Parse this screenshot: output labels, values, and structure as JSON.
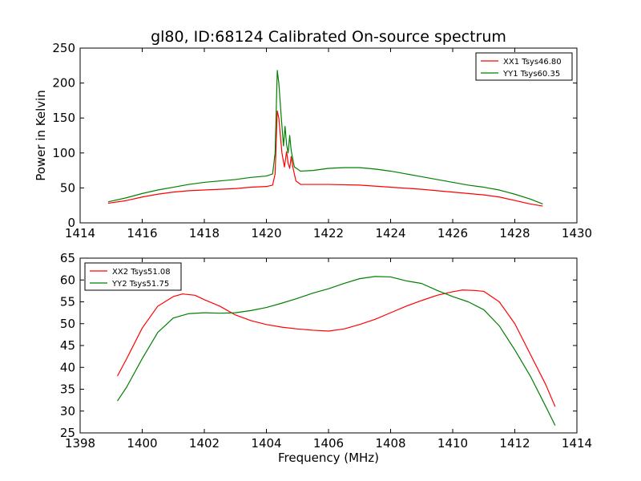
{
  "figure": {
    "title": "gl80, ID:68124 Calibrated On-source spectrum"
  },
  "colors": {
    "red": "#ff0000",
    "green": "#008000",
    "axis": "#000000",
    "background": "#ffffff"
  },
  "chart_data": [
    {
      "type": "line",
      "title": "gl80, ID:68124 Calibrated On-source spectrum",
      "xlabel": "",
      "ylabel": "Power in Kelvin",
      "xlim": [
        1414,
        1430
      ],
      "ylim": [
        0,
        250
      ],
      "xticks": [
        1414,
        1416,
        1418,
        1420,
        1422,
        1424,
        1426,
        1428,
        1430
      ],
      "yticks": [
        0,
        50,
        100,
        150,
        200,
        250
      ],
      "grid": false,
      "legend": "top-right",
      "series": [
        {
          "name": "XX1 Tsys46.80",
          "color": "#ff0000",
          "points": [
            [
              1414.9,
              28
            ],
            [
              1415.5,
              32
            ],
            [
              1416,
              37
            ],
            [
              1416.5,
              41
            ],
            [
              1417,
              44
            ],
            [
              1417.5,
              46
            ],
            [
              1418,
              47
            ],
            [
              1418.5,
              48
            ],
            [
              1419,
              49
            ],
            [
              1419.5,
              51
            ],
            [
              1420,
              52
            ],
            [
              1420.2,
              54
            ],
            [
              1420.28,
              70
            ],
            [
              1420.35,
              160
            ],
            [
              1420.4,
              150
            ],
            [
              1420.5,
              100
            ],
            [
              1420.58,
              80
            ],
            [
              1420.65,
              102
            ],
            [
              1420.7,
              85
            ],
            [
              1420.75,
              78
            ],
            [
              1420.8,
              95
            ],
            [
              1420.85,
              80
            ],
            [
              1420.95,
              60
            ],
            [
              1421.1,
              55
            ],
            [
              1422,
              55
            ],
            [
              1423,
              54
            ],
            [
              1424,
              51
            ],
            [
              1425,
              48
            ],
            [
              1426,
              44
            ],
            [
              1427,
              40
            ],
            [
              1427.5,
              37
            ],
            [
              1428,
              32
            ],
            [
              1428.5,
              27
            ],
            [
              1428.9,
              24
            ]
          ]
        },
        {
          "name": "YY1 Tsys60.35",
          "color": "#008000",
          "points": [
            [
              1414.9,
              30
            ],
            [
              1415.5,
              36
            ],
            [
              1416,
              42
            ],
            [
              1416.5,
              47
            ],
            [
              1417,
              51
            ],
            [
              1417.5,
              55
            ],
            [
              1418,
              58
            ],
            [
              1418.5,
              60
            ],
            [
              1419,
              62
            ],
            [
              1419.5,
              65
            ],
            [
              1420,
              67
            ],
            [
              1420.2,
              70
            ],
            [
              1420.28,
              100
            ],
            [
              1420.35,
              218
            ],
            [
              1420.4,
              200
            ],
            [
              1420.48,
              150
            ],
            [
              1420.55,
              110
            ],
            [
              1420.6,
              138
            ],
            [
              1420.65,
              112
            ],
            [
              1420.7,
              100
            ],
            [
              1420.75,
              125
            ],
            [
              1420.8,
              103
            ],
            [
              1420.9,
              80
            ],
            [
              1421.1,
              74
            ],
            [
              1421.5,
              75
            ],
            [
              1422,
              78
            ],
            [
              1422.5,
              79
            ],
            [
              1423,
              79
            ],
            [
              1423.5,
              77
            ],
            [
              1424,
              74
            ],
            [
              1424.5,
              70
            ],
            [
              1425,
              66
            ],
            [
              1425.5,
              62
            ],
            [
              1426,
              58
            ],
            [
              1426.5,
              54
            ],
            [
              1427,
              51
            ],
            [
              1427.5,
              47
            ],
            [
              1428,
              41
            ],
            [
              1428.5,
              34
            ],
            [
              1428.9,
              27
            ]
          ]
        }
      ]
    },
    {
      "type": "line",
      "title": "",
      "xlabel": "Frequency (MHz)",
      "ylabel": "",
      "xlim": [
        1398,
        1414
      ],
      "ylim": [
        25,
        65
      ],
      "xticks": [
        1398,
        1400,
        1402,
        1404,
        1406,
        1408,
        1410,
        1412,
        1414
      ],
      "yticks": [
        25,
        30,
        35,
        40,
        45,
        50,
        55,
        60,
        65
      ],
      "grid": false,
      "legend": "top-left",
      "series": [
        {
          "name": "XX2 Tsys51.08",
          "color": "#ff0000",
          "points": [
            [
              1399.2,
              38
            ],
            [
              1399.5,
              42
            ],
            [
              1400,
              49
            ],
            [
              1400.5,
              54
            ],
            [
              1401,
              56.2
            ],
            [
              1401.3,
              56.8
            ],
            [
              1401.7,
              56.5
            ],
            [
              1402,
              55.5
            ],
            [
              1402.5,
              54
            ],
            [
              1403,
              52
            ],
            [
              1403.5,
              50.7
            ],
            [
              1404,
              49.8
            ],
            [
              1404.5,
              49.2
            ],
            [
              1405,
              48.8
            ],
            [
              1405.5,
              48.5
            ],
            [
              1406,
              48.3
            ],
            [
              1406.5,
              48.8
            ],
            [
              1407,
              49.8
            ],
            [
              1407.5,
              51
            ],
            [
              1408,
              52.5
            ],
            [
              1408.5,
              54
            ],
            [
              1409,
              55.3
            ],
            [
              1409.5,
              56.5
            ],
            [
              1410,
              57.3
            ],
            [
              1410.3,
              57.7
            ],
            [
              1410.7,
              57.6
            ],
            [
              1411,
              57.4
            ],
            [
              1411.5,
              55
            ],
            [
              1412,
              50
            ],
            [
              1412.5,
              43
            ],
            [
              1413,
              36
            ],
            [
              1413.3,
              31
            ]
          ]
        },
        {
          "name": "YY2 Tsys51.75",
          "color": "#008000",
          "points": [
            [
              1399.2,
              32.3
            ],
            [
              1399.5,
              35.5
            ],
            [
              1400,
              42
            ],
            [
              1400.5,
              48
            ],
            [
              1401,
              51.3
            ],
            [
              1401.5,
              52.3
            ],
            [
              1402,
              52.5
            ],
            [
              1402.5,
              52.4
            ],
            [
              1403,
              52.5
            ],
            [
              1403.5,
              53
            ],
            [
              1404,
              53.7
            ],
            [
              1404.5,
              54.7
            ],
            [
              1405,
              55.8
            ],
            [
              1405.5,
              57
            ],
            [
              1406,
              58
            ],
            [
              1406.5,
              59.2
            ],
            [
              1407,
              60.3
            ],
            [
              1407.5,
              60.8
            ],
            [
              1408,
              60.7
            ],
            [
              1408.5,
              59.8
            ],
            [
              1409,
              59.2
            ],
            [
              1409.5,
              57.6
            ],
            [
              1410,
              56.2
            ],
            [
              1410.5,
              55
            ],
            [
              1411,
              53.2
            ],
            [
              1411.5,
              49.5
            ],
            [
              1412,
              44
            ],
            [
              1412.5,
              38
            ],
            [
              1413,
              31
            ],
            [
              1413.3,
              26.7
            ]
          ]
        }
      ]
    }
  ]
}
